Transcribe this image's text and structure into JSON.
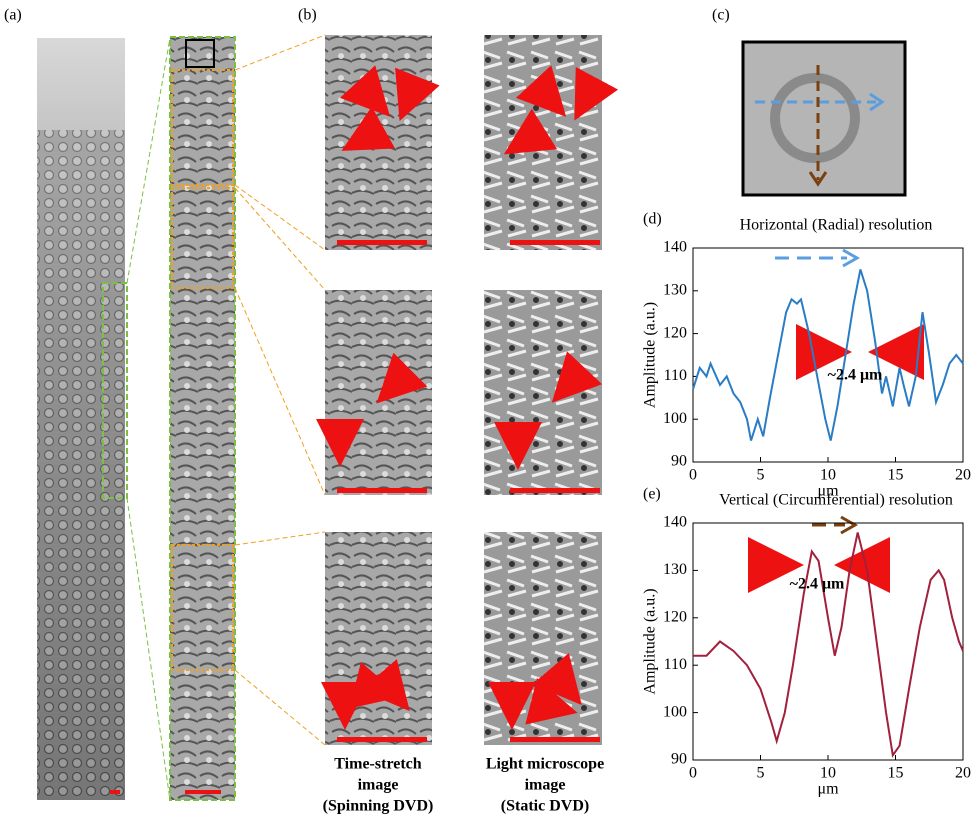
{
  "panel_labels": [
    "(a)",
    "(b)",
    "(c)"
  ],
  "captions": [
    [
      "Time-stretch",
      "image",
      "(Spinning DVD)"
    ],
    [
      "Light microscope",
      "image",
      "(Static DVD)"
    ]
  ],
  "chart_data": [
    {
      "type": "line",
      "label": "(d)",
      "title": "Horizontal (Radial) resolution",
      "ylabel": "Amplitude (a.u.)",
      "xlabel": "μm",
      "annotation": "~2.4 μm",
      "xlim": [
        0,
        20
      ],
      "ylim": [
        90,
        140
      ],
      "xticks": [
        0,
        5,
        10,
        15,
        20
      ],
      "yticks": [
        90,
        100,
        110,
        120,
        130,
        140
      ],
      "x": [
        0,
        0.5,
        1,
        1.3,
        2,
        2.5,
        3,
        3.5,
        4,
        4.3,
        4.8,
        5.2,
        5.7,
        6.3,
        6.9,
        7.3,
        7.7,
        8,
        8.6,
        9.2,
        9.8,
        10.2,
        10.7,
        11.3,
        11.9,
        12.4,
        12.9,
        13.5,
        14,
        14.3,
        14.8,
        15.3,
        15.6,
        16,
        16.5,
        17,
        17.5,
        18,
        18.5,
        19,
        19.5,
        20
      ],
      "series": [
        {
          "color": "#2a7cc4",
          "values": [
            107,
            112,
            110,
            113,
            108,
            110,
            106,
            104,
            100,
            95,
            100,
            96,
            105,
            115,
            125,
            128,
            127,
            128,
            120,
            110,
            100,
            95,
            103,
            115,
            127,
            135,
            130,
            118,
            106,
            110,
            103,
            112,
            108,
            103,
            110,
            125,
            115,
            104,
            108,
            113,
            115,
            113
          ]
        }
      ]
    },
    {
      "type": "line",
      "label": "(e)",
      "title": "Vertical (Circumferential) resolution",
      "ylabel": "Amplitude (a.u.)",
      "xlabel": "μm",
      "annotation": "~2.4 μm",
      "xlim": [
        0,
        20
      ],
      "ylim": [
        90,
        140
      ],
      "xticks": [
        0,
        5,
        10,
        15,
        20
      ],
      "yticks": [
        90,
        100,
        110,
        120,
        130,
        140
      ],
      "x": [
        0,
        1,
        2,
        3,
        4,
        5,
        5.8,
        6.2,
        6.8,
        7.4,
        8.2,
        8.8,
        9.3,
        10,
        10.5,
        11,
        11.6,
        12.2,
        12.9,
        13.6,
        14.3,
        14.8,
        15.3,
        16,
        16.8,
        17.6,
        18.2,
        18.6,
        19.2,
        19.7,
        20
      ],
      "series": [
        {
          "color": "#a3203c",
          "values": [
            112,
            112,
            115,
            113,
            110,
            105,
            98,
            94,
            100,
            110,
            125,
            134,
            132,
            120,
            112,
            118,
            130,
            138,
            130,
            115,
            100,
            91,
            93,
            105,
            118,
            128,
            130,
            128,
            120,
            115,
            113
          ]
        }
      ]
    }
  ]
}
